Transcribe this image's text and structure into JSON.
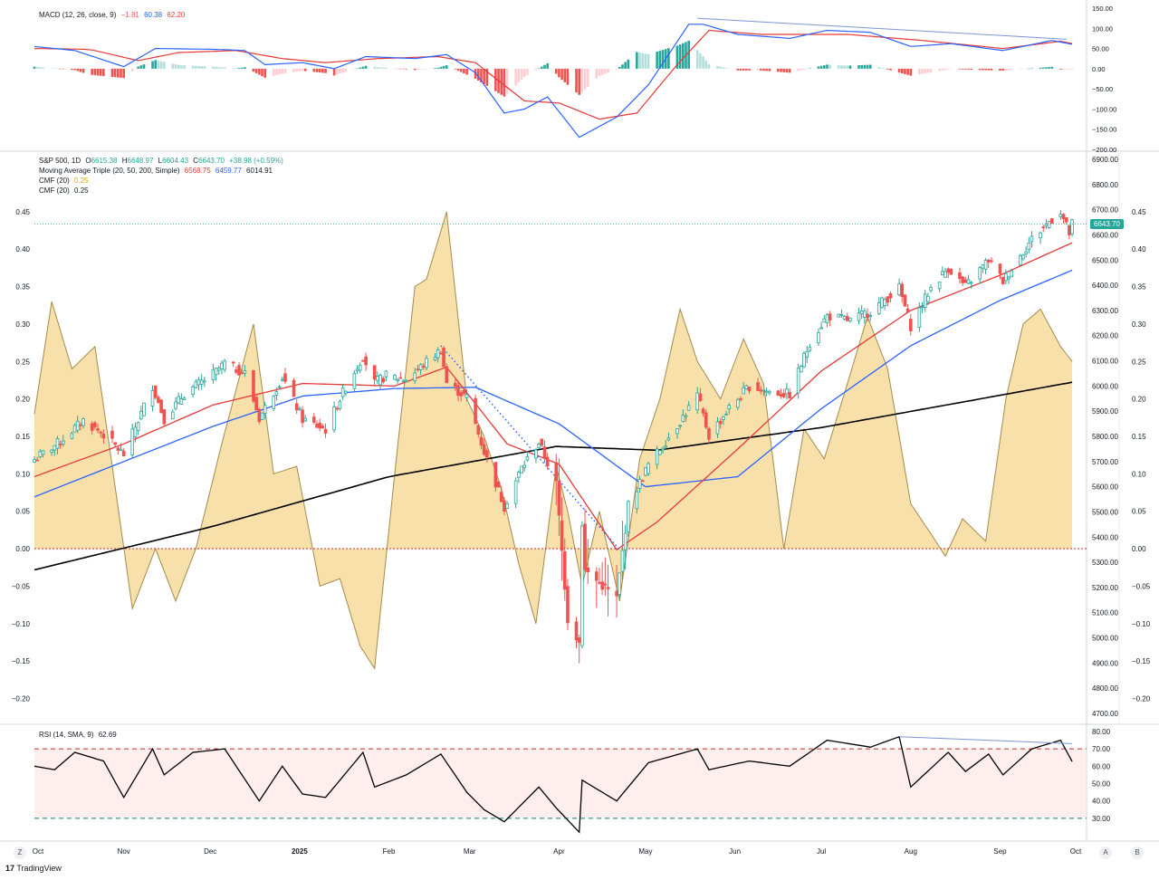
{
  "colors": {
    "up": "#26a69a",
    "down": "#ef5350",
    "ma20": "#e53935",
    "ma50": "#2962ff",
    "ma200": "#000000",
    "cmf_fill": "#f5d58f",
    "cmf_line": "#a58a4b",
    "macd": "#2962ff",
    "signal": "#e53935",
    "rsi": "#000000",
    "rsi_band": "#fde2e1"
  },
  "macd_legend": {
    "name": "MACD (12, 26, close, 9)",
    "hist": "−1.81",
    "macd": "60.38",
    "signal": "62.20"
  },
  "price_legend": {
    "symbol": "S&P 500, 1D",
    "o_label": "O",
    "o": "6615.38",
    "h_label": "H",
    "h": "6648.97",
    "l_label": "L",
    "l": "6604.43",
    "c_label": "C",
    "c": "6643.70",
    "chg": "+38.98 (+0.59%)",
    "ma_name": "Moving Average Triple (20, 50, 200, Simple)",
    "ma20": "6568.75",
    "ma50": "6459.77",
    "ma200": "6014.91",
    "cmf1_name": "CMF (20)",
    "cmf1": "0.25",
    "cmf2_name": "CMF (20)",
    "cmf2": "0.25"
  },
  "rsi_legend": {
    "name": "RSI (14, SMA, 9)",
    "value": "62.69"
  },
  "last_price": "6643.70",
  "nav": {
    "left": "Z",
    "a": "A",
    "b": "B"
  },
  "brand": {
    "logo": "17",
    "name": "TradingView"
  },
  "chart_data": [
    {
      "type": "candlestick",
      "title": "S&P 500, 1D",
      "ylim": [
        4700,
        6900
      ],
      "x_ticks": [
        "Oct",
        "Nov",
        "Dec",
        "2025",
        "Feb",
        "Mar",
        "Apr",
        "May",
        "Jun",
        "Jul",
        "Aug",
        "Sep",
        "Oct"
      ],
      "y_ticks": [
        "6900.00",
        "6800.00",
        "6700.00",
        "6600.00",
        "6500.00",
        "6400.00",
        "6300.00",
        "6200.00",
        "6100.00",
        "6000.00",
        "5900.00",
        "5800.00",
        "5700.00",
        "5600.00",
        "5500.00",
        "5400.00",
        "5300.00",
        "5200.00",
        "5100.00",
        "5000.00",
        "4900.00",
        "4800.00",
        "4700.00"
      ],
      "close_anchors": [
        [
          "2024-10-01",
          5708
        ],
        [
          "2024-10-10",
          5780
        ],
        [
          "2024-10-18",
          5864
        ],
        [
          "2024-10-25",
          5808
        ],
        [
          "2024-11-01",
          5728
        ],
        [
          "2024-11-11",
          6001
        ],
        [
          "2024-11-15",
          5870
        ],
        [
          "2024-11-22",
          5969
        ],
        [
          "2024-12-02",
          6047
        ],
        [
          "2024-12-06",
          6090
        ],
        [
          "2024-12-13",
          6051
        ],
        [
          "2024-12-18",
          5872
        ],
        [
          "2024-12-26",
          6037
        ],
        [
          "2025-01-02",
          5868
        ],
        [
          "2025-01-10",
          5827
        ],
        [
          "2025-01-17",
          5997
        ],
        [
          "2025-01-23",
          6118
        ],
        [
          "2025-01-27",
          6012
        ],
        [
          "2025-01-31",
          6041
        ],
        [
          "2025-02-07",
          6026
        ],
        [
          "2025-02-19",
          6144
        ],
        [
          "2025-02-21",
          6013
        ],
        [
          "2025-02-28",
          5955
        ],
        [
          "2025-03-06",
          5739
        ],
        [
          "2025-03-13",
          5522
        ],
        [
          "2025-03-19",
          5675
        ],
        [
          "2025-03-25",
          5776
        ],
        [
          "2025-03-31",
          5612
        ],
        [
          "2025-04-04",
          5074
        ],
        [
          "2025-04-08",
          4982
        ],
        [
          "2025-04-09",
          5457
        ],
        [
          "2025-04-10",
          5268
        ],
        [
          "2025-04-21",
          5158
        ],
        [
          "2025-04-25",
          5525
        ],
        [
          "2025-05-02",
          5687
        ],
        [
          "2025-05-12",
          5844
        ],
        [
          "2025-05-19",
          5963
        ],
        [
          "2025-05-23",
          5802
        ],
        [
          "2025-05-30",
          5912
        ],
        [
          "2025-06-06",
          6000
        ],
        [
          "2025-06-13",
          5977
        ],
        [
          "2025-06-20",
          5967
        ],
        [
          "2025-06-27",
          6173
        ],
        [
          "2025-07-03",
          6279
        ],
        [
          "2025-07-11",
          6260
        ],
        [
          "2025-07-18",
          6297
        ],
        [
          "2025-07-28",
          6389
        ],
        [
          "2025-08-01",
          6238
        ],
        [
          "2025-08-08",
          6389
        ],
        [
          "2025-08-14",
          6469
        ],
        [
          "2025-08-20",
          6395
        ],
        [
          "2025-08-28",
          6501
        ],
        [
          "2025-09-02",
          6416
        ],
        [
          "2025-09-12",
          6584
        ],
        [
          "2025-09-19",
          6664
        ],
        [
          "2025-09-22",
          6693
        ],
        [
          "2025-09-25",
          6605
        ],
        [
          "2025-09-26",
          6643.7
        ]
      ],
      "ma20_anchors": [
        [
          "2024-10-01",
          5640
        ],
        [
          "2024-11-01",
          5770
        ],
        [
          "2024-12-02",
          5925
        ],
        [
          "2025-01-02",
          6010
        ],
        [
          "2025-02-03",
          6000
        ],
        [
          "2025-02-21",
          6075
        ],
        [
          "2025-03-14",
          5770
        ],
        [
          "2025-04-01",
          5690
        ],
        [
          "2025-04-21",
          5350
        ],
        [
          "2025-05-05",
          5460
        ],
        [
          "2025-06-02",
          5750
        ],
        [
          "2025-07-01",
          6060
        ],
        [
          "2025-08-01",
          6300
        ],
        [
          "2025-09-01",
          6440
        ],
        [
          "2025-09-26",
          6568.75
        ]
      ],
      "ma50_anchors": [
        [
          "2024-10-01",
          5560
        ],
        [
          "2024-11-01",
          5700
        ],
        [
          "2024-12-02",
          5840
        ],
        [
          "2025-01-02",
          5960
        ],
        [
          "2025-02-03",
          5990
        ],
        [
          "2025-03-03",
          5995
        ],
        [
          "2025-04-01",
          5850
        ],
        [
          "2025-05-01",
          5600
        ],
        [
          "2025-06-02",
          5640
        ],
        [
          "2025-07-01",
          5910
        ],
        [
          "2025-08-01",
          6160
        ],
        [
          "2025-09-01",
          6340
        ],
        [
          "2025-09-26",
          6459.77
        ]
      ],
      "ma200_anchors": [
        [
          "2024-10-01",
          5270
        ],
        [
          "2024-12-01",
          5440
        ],
        [
          "2025-02-01",
          5640
        ],
        [
          "2025-03-31",
          5760
        ],
        [
          "2025-05-05",
          5745
        ],
        [
          "2025-07-01",
          5835
        ],
        [
          "2025-09-26",
          6014.91
        ]
      ],
      "trendline_dotted": [
        [
          "2025-02-19",
          6160
        ],
        [
          "2025-04-22",
          5350
        ]
      ]
    },
    {
      "type": "area",
      "title": "CMF (20)",
      "ylim": [
        -0.22,
        0.52
      ],
      "y_ticks": [
        "0.45",
        "0.40",
        "0.35",
        "0.30",
        "0.25",
        "0.20",
        "0.15",
        "0.10",
        "0.05",
        "0.00",
        "−0.05",
        "−0.10",
        "−0.15",
        "−0.20"
      ],
      "anchors": [
        [
          "2024-10-01",
          0.18
        ],
        [
          "2024-10-07",
          0.33
        ],
        [
          "2024-10-14",
          0.24
        ],
        [
          "2024-10-22",
          0.27
        ],
        [
          "2024-10-28",
          0.11
        ],
        [
          "2024-11-04",
          -0.08
        ],
        [
          "2024-11-12",
          0.0
        ],
        [
          "2024-11-19",
          -0.07
        ],
        [
          "2024-11-26",
          0.0
        ],
        [
          "2024-12-05",
          0.14
        ],
        [
          "2024-12-16",
          0.3
        ],
        [
          "2024-12-23",
          0.1
        ],
        [
          "2024-12-31",
          0.11
        ],
        [
          "2025-01-08",
          -0.05
        ],
        [
          "2025-01-15",
          -0.04
        ],
        [
          "2025-01-22",
          -0.13
        ],
        [
          "2025-01-27",
          -0.16
        ],
        [
          "2025-02-03",
          0.1
        ],
        [
          "2025-02-10",
          0.35
        ],
        [
          "2025-02-14",
          0.36
        ],
        [
          "2025-02-21",
          0.45
        ],
        [
          "2025-02-28",
          0.2
        ],
        [
          "2025-03-06",
          0.15
        ],
        [
          "2025-03-12",
          0.08
        ],
        [
          "2025-03-18",
          -0.02
        ],
        [
          "2025-03-24",
          -0.1
        ],
        [
          "2025-03-31",
          0.11
        ],
        [
          "2025-04-04",
          0.05
        ],
        [
          "2025-04-09",
          -0.05
        ],
        [
          "2025-04-15",
          0.05
        ],
        [
          "2025-04-22",
          -0.07
        ],
        [
          "2025-04-29",
          0.12
        ],
        [
          "2025-05-06",
          0.2
        ],
        [
          "2025-05-13",
          0.32
        ],
        [
          "2025-05-19",
          0.25
        ],
        [
          "2025-05-27",
          0.2
        ],
        [
          "2025-06-04",
          0.28
        ],
        [
          "2025-06-11",
          0.22
        ],
        [
          "2025-06-18",
          0.0
        ],
        [
          "2025-06-25",
          0.16
        ],
        [
          "2025-07-02",
          0.12
        ],
        [
          "2025-07-10",
          0.22
        ],
        [
          "2025-07-17",
          0.31
        ],
        [
          "2025-07-24",
          0.24
        ],
        [
          "2025-08-01",
          0.06
        ],
        [
          "2025-08-08",
          0.02
        ],
        [
          "2025-08-13",
          -0.01
        ],
        [
          "2025-08-19",
          0.04
        ],
        [
          "2025-08-27",
          0.01
        ],
        [
          "2025-09-03",
          0.2
        ],
        [
          "2025-09-09",
          0.3
        ],
        [
          "2025-09-15",
          0.32
        ],
        [
          "2025-09-22",
          0.27
        ],
        [
          "2025-09-26",
          0.25
        ]
      ]
    },
    {
      "type": "line",
      "title": "MACD (12, 26, close, 9)",
      "ylim": [
        -200,
        150
      ],
      "y_ticks": [
        "150.00",
        "100.00",
        "50.00",
        "0.00",
        "−50.00",
        "−100.00",
        "−150.00",
        "−200.00"
      ],
      "macd_anchors": [
        [
          "2024-10-01",
          55
        ],
        [
          "2024-10-15",
          45
        ],
        [
          "2024-11-01",
          5
        ],
        [
          "2024-11-12",
          50
        ],
        [
          "2024-12-02",
          48
        ],
        [
          "2024-12-13",
          45
        ],
        [
          "2024-12-20",
          10
        ],
        [
          "2025-01-02",
          15
        ],
        [
          "2025-01-13",
          0
        ],
        [
          "2025-01-24",
          30
        ],
        [
          "2025-02-10",
          25
        ],
        [
          "2025-02-21",
          35
        ],
        [
          "2025-03-03",
          -10
        ],
        [
          "2025-03-13",
          -110
        ],
        [
          "2025-03-20",
          -100
        ],
        [
          "2025-03-28",
          -70
        ],
        [
          "2025-04-08",
          -170
        ],
        [
          "2025-04-21",
          -120
        ],
        [
          "2025-05-02",
          -40
        ],
        [
          "2025-05-16",
          110
        ],
        [
          "2025-05-21",
          110
        ],
        [
          "2025-06-02",
          85
        ],
        [
          "2025-06-20",
          75
        ],
        [
          "2025-07-03",
          95
        ],
        [
          "2025-07-18",
          90
        ],
        [
          "2025-08-01",
          55
        ],
        [
          "2025-08-15",
          62
        ],
        [
          "2025-09-02",
          45
        ],
        [
          "2025-09-19",
          70
        ],
        [
          "2025-09-26",
          60.38
        ]
      ],
      "signal_anchors": [
        [
          "2024-10-01",
          50
        ],
        [
          "2024-10-20",
          48
        ],
        [
          "2024-11-06",
          20
        ],
        [
          "2024-11-20",
          40
        ],
        [
          "2024-12-10",
          45
        ],
        [
          "2024-12-26",
          25
        ],
        [
          "2025-01-10",
          15
        ],
        [
          "2025-01-28",
          25
        ],
        [
          "2025-02-18",
          30
        ],
        [
          "2025-03-03",
          15
        ],
        [
          "2025-03-20",
          -80
        ],
        [
          "2025-04-01",
          -85
        ],
        [
          "2025-04-15",
          -125
        ],
        [
          "2025-04-28",
          -110
        ],
        [
          "2025-05-12",
          10
        ],
        [
          "2025-05-23",
          95
        ],
        [
          "2025-06-10",
          85
        ],
        [
          "2025-07-10",
          85
        ],
        [
          "2025-08-05",
          70
        ],
        [
          "2025-09-02",
          50
        ],
        [
          "2025-09-22",
          68
        ],
        [
          "2025-09-26",
          62.2
        ]
      ],
      "divergence_line": [
        [
          "2025-05-19",
          125
        ],
        [
          "2025-09-24",
          73
        ]
      ]
    },
    {
      "type": "line",
      "title": "RSI (14, SMA, 9)",
      "ylim": [
        20,
        80
      ],
      "y_ticks": [
        "80.00",
        "70.00",
        "60.00",
        "50.00",
        "40.00",
        "30.00"
      ],
      "band": [
        30,
        70
      ],
      "anchors": [
        [
          "2024-10-01",
          60
        ],
        [
          "2024-10-08",
          58
        ],
        [
          "2024-10-15",
          68
        ],
        [
          "2024-10-25",
          63
        ],
        [
          "2024-11-01",
          42
        ],
        [
          "2024-11-11",
          70
        ],
        [
          "2024-11-15",
          55
        ],
        [
          "2024-11-25",
          68
        ],
        [
          "2024-12-06",
          70
        ],
        [
          "2024-12-18",
          40
        ],
        [
          "2024-12-26",
          60
        ],
        [
          "2025-01-02",
          44
        ],
        [
          "2025-01-10",
          42
        ],
        [
          "2025-01-23",
          68
        ],
        [
          "2025-01-27",
          48
        ],
        [
          "2025-02-07",
          55
        ],
        [
          "2025-02-19",
          67
        ],
        [
          "2025-02-28",
          45
        ],
        [
          "2025-03-06",
          35
        ],
        [
          "2025-03-13",
          28
        ],
        [
          "2025-03-25",
          48
        ],
        [
          "2025-03-31",
          36
        ],
        [
          "2025-04-08",
          22
        ],
        [
          "2025-04-09",
          52
        ],
        [
          "2025-04-21",
          40
        ],
        [
          "2025-05-02",
          62
        ],
        [
          "2025-05-19",
          70
        ],
        [
          "2025-05-23",
          58
        ],
        [
          "2025-06-06",
          63
        ],
        [
          "2025-06-20",
          60
        ],
        [
          "2025-07-03",
          75
        ],
        [
          "2025-07-18",
          71
        ],
        [
          "2025-07-28",
          77
        ],
        [
          "2025-08-01",
          48
        ],
        [
          "2025-08-14",
          68
        ],
        [
          "2025-08-20",
          57
        ],
        [
          "2025-08-28",
          67
        ],
        [
          "2025-09-02",
          55
        ],
        [
          "2025-09-12",
          70
        ],
        [
          "2025-09-22",
          75
        ],
        [
          "2025-09-26",
          62.69
        ]
      ],
      "divergence_line": [
        [
          "2025-07-28",
          77
        ],
        [
          "2025-09-26",
          73
        ]
      ]
    }
  ]
}
